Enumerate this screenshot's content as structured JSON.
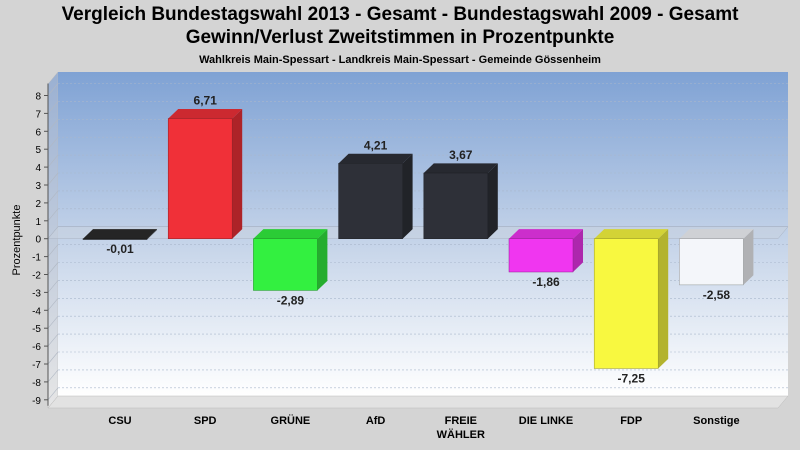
{
  "chart_data": {
    "type": "bar",
    "title": "Vergleich Bundestagswahl 2013 - Gesamt - Bundestagswahl 2009 - Gesamt",
    "title2": "Gewinn/Verlust Zweitstimmen in Prozentpunkte",
    "subtitle": "Wahlkreis Main-Spessart - Landkreis Main-Spessart - Gemeinde Gössenheim",
    "ylabel": "Prozentpunkte",
    "xlabel": "",
    "ylim": [
      -9,
      8
    ],
    "yticks": [
      "8",
      "7",
      "6",
      "5",
      "4",
      "3",
      "2",
      "1",
      "0",
      "-1",
      "-2",
      "-3",
      "-4",
      "-5",
      "-6",
      "-7",
      "-8",
      "-9"
    ],
    "categories": [
      "CSU",
      "SPD",
      "GRÜNE",
      "AfD",
      "FREIE WÄHLER",
      "DIE LINKE",
      "FDP",
      "Sonstige"
    ],
    "category_lines": [
      [
        "CSU"
      ],
      [
        "SPD"
      ],
      [
        "GRÜNE"
      ],
      [
        "AfD"
      ],
      [
        "FREIE",
        "WÄHLER"
      ],
      [
        "DIE LINKE"
      ],
      [
        "FDP"
      ],
      [
        "Sonstige"
      ]
    ],
    "values": [
      -0.01,
      6.71,
      -2.89,
      4.21,
      3.67,
      -1.86,
      -7.25,
      -2.58
    ],
    "value_labels": [
      "-0,01",
      "6,71",
      "-2,89",
      "4,21",
      "3,67",
      "-1,86",
      "-7,25",
      "-2,58"
    ],
    "colors": [
      "#2b2b2b",
      "#f03038",
      "#33f040",
      "#2e3038",
      "#2e3038",
      "#f036f0",
      "#f8f840",
      "#f4f6fa"
    ],
    "grid": true,
    "legend": "none"
  }
}
